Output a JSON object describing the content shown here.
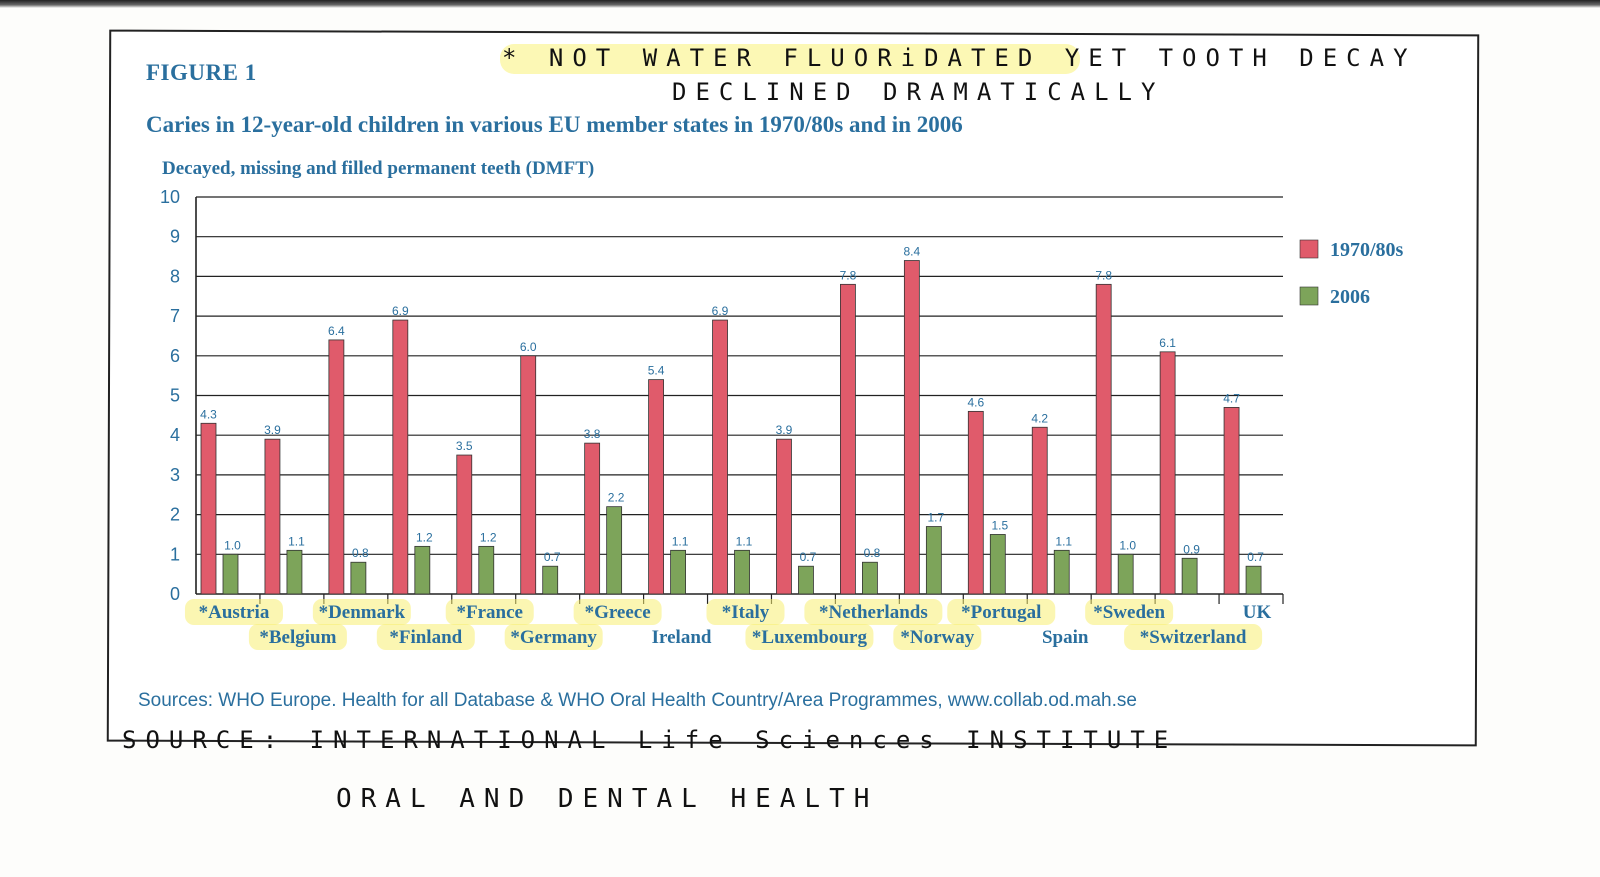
{
  "figure_label": "FIGURE 1",
  "handwritten": {
    "line1": "* NOT WATER FLUORiDATED YET TOOTH DECAY",
    "line2": "DECLINED DRAMATICALLY",
    "source_line1": "SOURCE: INTERNATIONAL Life Sciences INSTITUTE",
    "source_line2": "ORAL AND DENTAL HEALTH"
  },
  "sources_text": "Sources: WHO Europe. Health for all Database & WHO Oral Health Country/Area Programmes, www.collab.od.mah.se",
  "colors": {
    "series1": "#e05b6b",
    "series2": "#7da45a",
    "text": "#2a6f9e",
    "highlight": "#f7ef72"
  },
  "chart_data": {
    "type": "bar",
    "title": "Caries in 12-year-old children in various EU member states in 1970/80s and in 2006",
    "xlabel": "",
    "ylabel": "Decayed, missing and filled permanent teeth (DMFT)",
    "ylim": [
      0,
      10
    ],
    "yticks": [
      0,
      1,
      2,
      3,
      4,
      5,
      6,
      7,
      8,
      9,
      10
    ],
    "grid": true,
    "legend_position": "right",
    "categories": [
      "*Austria",
      "*Belgium",
      "*Denmark",
      "*Finland",
      "*France",
      "*Germany",
      "*Greece",
      "Ireland",
      "*Italy",
      "*Luxembourg",
      "*Netherlands",
      "*Norway",
      "*Portugal",
      "Spain",
      "*Sweden",
      "*Switzerland",
      "UK"
    ],
    "series": [
      {
        "name": "1970/80s",
        "values": [
          4.3,
          3.9,
          6.4,
          6.9,
          3.5,
          6.0,
          3.8,
          5.4,
          6.9,
          3.9,
          7.8,
          8.4,
          4.6,
          4.2,
          7.8,
          6.1,
          4.7
        ]
      },
      {
        "name": "2006",
        "values": [
          1.0,
          1.1,
          0.8,
          1.2,
          1.2,
          0.7,
          2.2,
          1.1,
          1.1,
          0.7,
          0.8,
          1.7,
          1.5,
          1.1,
          1.0,
          0.9,
          0.7
        ]
      }
    ]
  }
}
